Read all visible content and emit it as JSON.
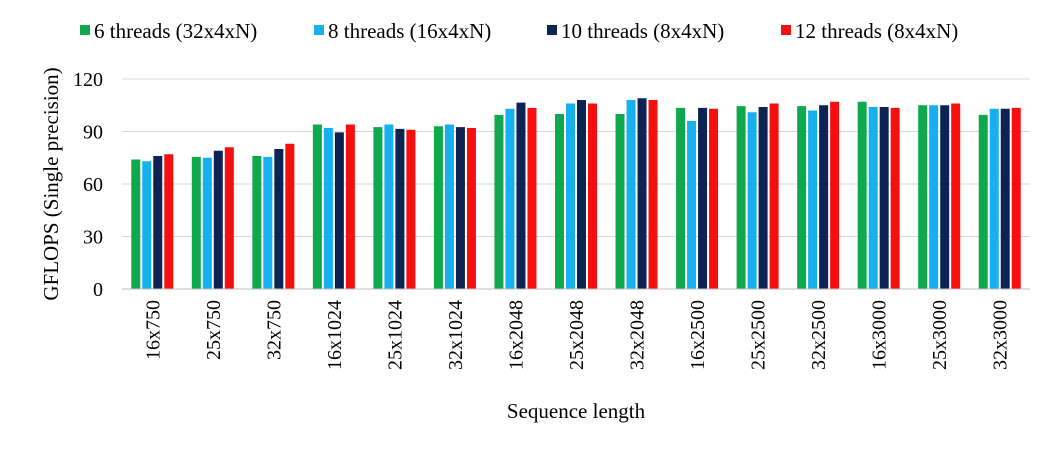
{
  "chart_data": {
    "type": "bar",
    "title": "",
    "xlabel": "Sequence length",
    "ylabel": "GFLOPS (Single precision)",
    "ylim": [
      0,
      120
    ],
    "yticks": [
      0,
      30,
      60,
      90,
      120
    ],
    "grid": true,
    "legend_position": "top",
    "categories": [
      "16x750",
      "25x750",
      "32x750",
      "16x1024",
      "25x1024",
      "32x1024",
      "16x2048",
      "25x2048",
      "32x2048",
      "16x2500",
      "25x2500",
      "32x2500",
      "16x3000",
      "25x3000",
      "32x3000"
    ],
    "series": [
      {
        "name": "6 threads (32x4xN)",
        "color": "#10a84d",
        "values": [
          74,
          75.5,
          76,
          94,
          92.5,
          93,
          99.5,
          100,
          100,
          103.5,
          104.5,
          104.5,
          107,
          105,
          99.5
        ]
      },
      {
        "name": "8 threads (16x4xN)",
        "color": "#17b0ee",
        "values": [
          73,
          75,
          75.5,
          92,
          94,
          94,
          103,
          106,
          108,
          96,
          101,
          102,
          104,
          105,
          103
        ]
      },
      {
        "name": "10 threads (8x4xN)",
        "color": "#0d2354",
        "values": [
          76,
          79,
          80,
          89.5,
          91.5,
          92.5,
          106.5,
          108,
          109,
          103.5,
          104,
          105,
          104,
          105,
          103
        ]
      },
      {
        "name": "12 threads (8x4xN)",
        "color": "#f50f0f",
        "values": [
          77,
          81,
          83,
          94,
          91,
          92,
          103.5,
          106,
          108,
          103,
          106,
          107,
          103.5,
          106,
          103.5
        ]
      }
    ]
  }
}
